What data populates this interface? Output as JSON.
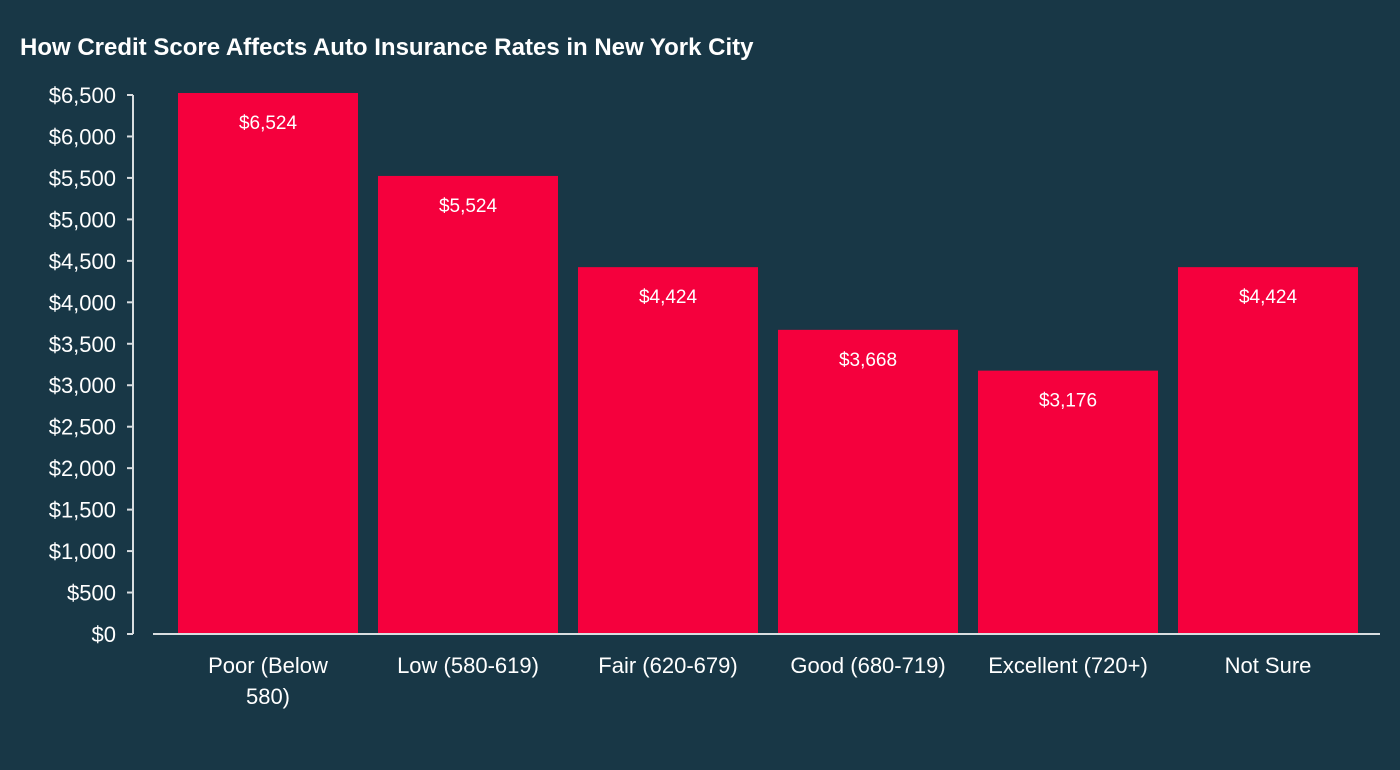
{
  "chart_data": {
    "type": "bar",
    "title": "How Credit Score Affects Auto Insurance Rates in New York City",
    "xlabel": "",
    "ylabel": "",
    "categories": [
      [
        "Poor (Below",
        "580)"
      ],
      [
        "Low (580-619)"
      ],
      [
        "Fair (620-679)"
      ],
      [
        "Good (680-719)"
      ],
      [
        "Excellent (720+)"
      ],
      [
        "Not Sure"
      ]
    ],
    "values": [
      6524,
      5524,
      4424,
      3668,
      3176,
      4424
    ],
    "data_labels": [
      "$6,524",
      "$5,524",
      "$4,424",
      "$3,668",
      "$3,176",
      "$4,424"
    ],
    "ylim": [
      0,
      6500
    ],
    "yticks": [
      0,
      500,
      1000,
      1500,
      2000,
      2500,
      3000,
      3500,
      4000,
      4500,
      5000,
      5500,
      6000,
      6500
    ],
    "ytick_labels": [
      "$0",
      "$500",
      "$1,000",
      "$1,500",
      "$2,000",
      "$2,500",
      "$3,000",
      "$3,500",
      "$4,000",
      "$4,500",
      "$5,000",
      "$5,500",
      "$6,000",
      "$6,500"
    ],
    "grid": false,
    "legend": "none",
    "colors": {
      "background": "#183746",
      "bar": "#f5003d",
      "axis": "#d8dde0",
      "text": "#ffffff"
    }
  }
}
